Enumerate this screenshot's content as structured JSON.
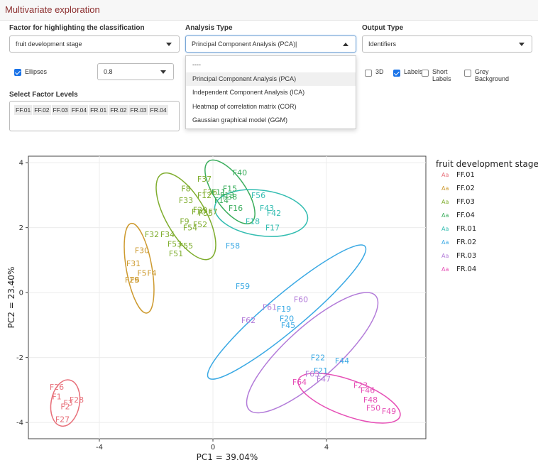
{
  "app_title": "Multivariate exploration",
  "controls": {
    "factor_label": "Factor for highlighting the classification",
    "factor_value": "fruit development stage",
    "analysis_label": "Analysis Type",
    "analysis_value": "Principal Component Analysis (PCA)|",
    "output_label": "Output Type",
    "output_value": "Identifiers",
    "ellipses_label": "Ellipses",
    "ellipses_checked": true,
    "level_value": "0.8",
    "three_d_label": "3D",
    "labels_label": "Labels",
    "labels_checked": true,
    "short_labels_label": "Short Labels",
    "grey_bg_label": "Grey Background",
    "factor_levels_label": "Select Factor Levels",
    "factor_levels": [
      "FF.01",
      "FF.02",
      "FF.03",
      "FF.04",
      "FR.01",
      "FR.02",
      "FR.03",
      "FR.04"
    ]
  },
  "analysis_dropdown": {
    "options": [
      "----",
      "Principal Component Analysis (PCA)",
      "Independent Component Analysis (ICA)",
      "Heatmap of correlation matrix (COR)",
      "Gaussian graphical model (GGM)"
    ],
    "highlighted": "Principal Component Analysis (PCA)"
  },
  "icons": {
    "caret": "chevron-down-icon",
    "caret_open": "chevron-up-icon",
    "checkbox": "checkbox-icon"
  },
  "chart_data": {
    "type": "scatter",
    "xlabel": "PC1 =  39.04%",
    "ylabel": "PC2 =  23.40%",
    "xticks": [
      -4,
      0,
      4
    ],
    "yticks": [
      -4,
      -2,
      0,
      2,
      4
    ],
    "xlim": [
      -6.5,
      7.5
    ],
    "ylim": [
      -4.5,
      4.2
    ],
    "legend_title": "fruit development stage",
    "legend_key_text": "Aa",
    "legend_position": "right",
    "series": [
      {
        "name": "FF.01",
        "color": "#e8707a",
        "points": [
          {
            "label": "F26",
            "x": -5.5,
            "y": -2.9
          },
          {
            "label": "F1",
            "x": -5.5,
            "y": -3.2
          },
          {
            "label": "F28",
            "x": -4.8,
            "y": -3.3
          },
          {
            "label": "F3",
            "x": -5.1,
            "y": -3.4
          },
          {
            "label": "F2",
            "x": -5.2,
            "y": -3.5
          },
          {
            "label": "F27",
            "x": -5.3,
            "y": -3.9
          }
        ],
        "ellipse": {
          "cx": -5.2,
          "cy": -3.4,
          "rx": 0.5,
          "ry": 0.72,
          "angle": -10
        }
      },
      {
        "name": "FF.02",
        "color": "#cd9a2f",
        "points": [
          {
            "label": "F30",
            "x": -2.5,
            "y": 1.3
          },
          {
            "label": "F31",
            "x": -2.8,
            "y": 0.9
          },
          {
            "label": "F5",
            "x": -2.5,
            "y": 0.6
          },
          {
            "label": "F4",
            "x": -2.15,
            "y": 0.6
          },
          {
            "label": "F29",
            "x": -2.85,
            "y": 0.4
          },
          {
            "label": "F6",
            "x": -2.75,
            "y": 0.4
          }
        ],
        "ellipse": {
          "cx": -2.6,
          "cy": 0.75,
          "rx": 0.45,
          "ry": 1.4,
          "angle": 10
        }
      },
      {
        "name": "FF.03",
        "color": "#7fad2e",
        "points": [
          {
            "label": "F37",
            "x": -0.3,
            "y": 3.5
          },
          {
            "label": "F8",
            "x": -0.95,
            "y": 3.2
          },
          {
            "label": "F12",
            "x": -0.3,
            "y": 3.0
          },
          {
            "label": "F36",
            "x": -0.1,
            "y": 3.1
          },
          {
            "label": "F33",
            "x": -0.95,
            "y": 2.85
          },
          {
            "label": "F10",
            "x": -0.5,
            "y": 2.5
          },
          {
            "label": "F39",
            "x": -0.45,
            "y": 2.55
          },
          {
            "label": "F35",
            "x": -0.25,
            "y": 2.45
          },
          {
            "label": "F7",
            "x": 0.0,
            "y": 2.5
          },
          {
            "label": "F9",
            "x": -1.0,
            "y": 2.2
          },
          {
            "label": "F54",
            "x": -0.8,
            "y": 2.0
          },
          {
            "label": "F52",
            "x": -0.45,
            "y": 2.1
          },
          {
            "label": "F32",
            "x": -2.15,
            "y": 1.8
          },
          {
            "label": "F34",
            "x": -1.6,
            "y": 1.8
          },
          {
            "label": "F53",
            "x": -1.35,
            "y": 1.5
          },
          {
            "label": "F55",
            "x": -0.95,
            "y": 1.45
          },
          {
            "label": "F51",
            "x": -1.3,
            "y": 1.2
          }
        ],
        "ellipse": {
          "cx": -0.95,
          "cy": 2.35,
          "rx": 0.7,
          "ry": 1.5,
          "angle": 30
        }
      },
      {
        "name": "FF.04",
        "color": "#3aad5c",
        "points": [
          {
            "label": "F40",
            "x": 0.95,
            "y": 3.7
          },
          {
            "label": "F11",
            "x": 0.2,
            "y": 3.1
          },
          {
            "label": "F15",
            "x": 0.6,
            "y": 3.2
          },
          {
            "label": "F13",
            "x": 0.5,
            "y": 3.0
          },
          {
            "label": "F38",
            "x": 0.6,
            "y": 2.95
          },
          {
            "label": "F14",
            "x": 0.3,
            "y": 2.85
          },
          {
            "label": "F16",
            "x": 0.8,
            "y": 2.6
          }
        ],
        "ellipse": {
          "cx": 0.6,
          "cy": 3.1,
          "rx": 0.55,
          "ry": 1.15,
          "angle": 35
        }
      },
      {
        "name": "FR.01",
        "color": "#33bdb1",
        "points": [
          {
            "label": "F56",
            "x": 1.6,
            "y": 3.0
          },
          {
            "label": "F43",
            "x": 1.9,
            "y": 2.6
          },
          {
            "label": "F42",
            "x": 2.15,
            "y": 2.45
          },
          {
            "label": "F18",
            "x": 1.4,
            "y": 2.2
          },
          {
            "label": "F17",
            "x": 2.1,
            "y": 2.0
          }
        ],
        "ellipse": {
          "cx": 1.7,
          "cy": 2.45,
          "rx": 1.65,
          "ry": 0.7,
          "angle": -8
        }
      },
      {
        "name": "FR.02",
        "color": "#3aa9e4",
        "points": [
          {
            "label": "F58",
            "x": 0.7,
            "y": 1.45
          },
          {
            "label": "F59",
            "x": 1.05,
            "y": 0.2
          },
          {
            "label": "F19",
            "x": 2.5,
            "y": -0.5
          },
          {
            "label": "F20",
            "x": 2.6,
            "y": -0.8
          },
          {
            "label": "F45",
            "x": 2.65,
            "y": -1.0
          },
          {
            "label": "F22",
            "x": 3.7,
            "y": -2.0
          },
          {
            "label": "F44",
            "x": 4.55,
            "y": -2.1
          },
          {
            "label": "F21",
            "x": 3.8,
            "y": -2.4
          }
        ],
        "ellipse": {
          "cx": 2.6,
          "cy": -0.6,
          "rx": 3.6,
          "ry": 0.55,
          "angle": 40
        }
      },
      {
        "name": "FR.03",
        "color": "#b37cd9",
        "points": [
          {
            "label": "F60",
            "x": 3.1,
            "y": -0.2
          },
          {
            "label": "F61",
            "x": 2.0,
            "y": -0.45
          },
          {
            "label": "F62",
            "x": 1.25,
            "y": -0.85
          },
          {
            "label": "F63",
            "x": 3.5,
            "y": -2.5
          },
          {
            "label": "F47",
            "x": 3.9,
            "y": -2.65
          }
        ],
        "ellipse": {
          "cx": 3.5,
          "cy": -1.85,
          "rx": 3.0,
          "ry": 0.8,
          "angle": 42
        }
      },
      {
        "name": "FR.04",
        "color": "#e64fb6",
        "points": [
          {
            "label": "F64",
            "x": 3.05,
            "y": -2.75
          },
          {
            "label": "F23",
            "x": 5.2,
            "y": -2.85
          },
          {
            "label": "F46",
            "x": 5.45,
            "y": -3.0
          },
          {
            "label": "F48",
            "x": 5.55,
            "y": -3.3
          },
          {
            "label": "F50",
            "x": 5.65,
            "y": -3.55
          },
          {
            "label": "F49",
            "x": 6.2,
            "y": -3.65
          }
        ],
        "ellipse": {
          "cx": 4.8,
          "cy": -3.25,
          "rx": 1.9,
          "ry": 0.55,
          "angle": -20
        }
      }
    ]
  }
}
